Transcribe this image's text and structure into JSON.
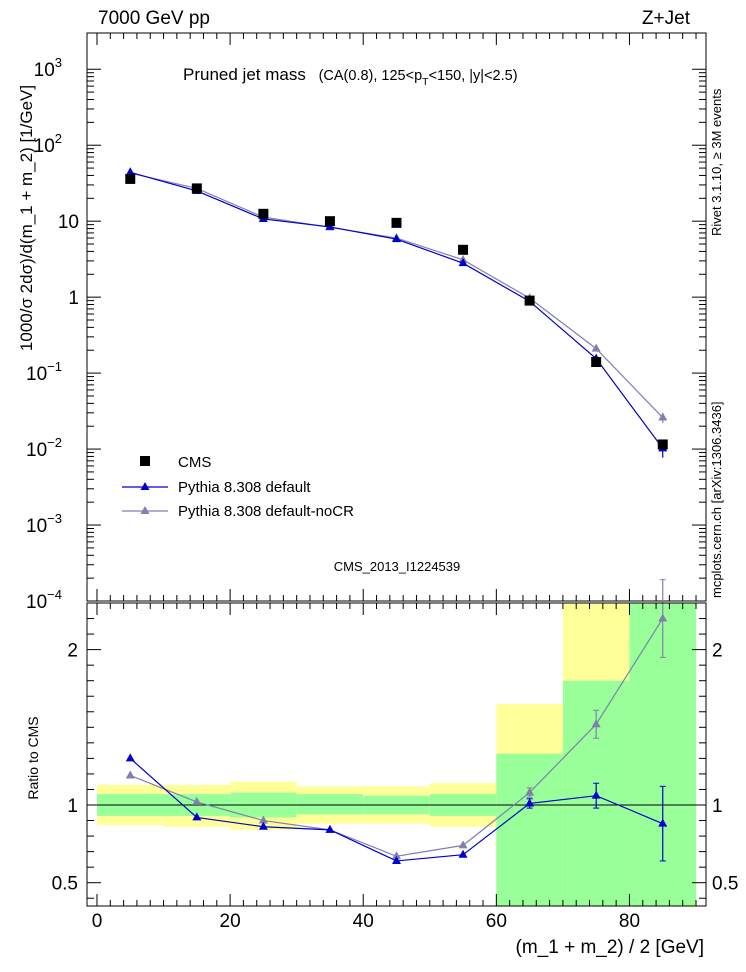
{
  "header": {
    "left": "7000 GeV pp",
    "right": "Z+Jet"
  },
  "side_labels": {
    "rivet": "Rivet 3.1.10, ≥ 3M events",
    "mcplots": "mcplots.cern.ch [arXiv:1306.3436]"
  },
  "chart_data": [
    {
      "type": "scatter",
      "title": "Pruned jet mass",
      "title_detail": "(CA(0.8), 125<p",
      "title_detail_sub": "T",
      "title_detail_tail": "<150, |y|<2.5)",
      "ylabel": "1000/σ 2dσ)/d(m_1 + m_2) [1/GeV]",
      "analysis_id": "CMS_2013_I1224539",
      "yscale": "log",
      "ylim": [
        0.0001,
        3000
      ],
      "xlim": [
        -1.5,
        91.5
      ],
      "y_ticks": [
        {
          "value": 1000,
          "base": "10",
          "exp": "3"
        },
        {
          "value": 100,
          "base": "10",
          "exp": "2"
        },
        {
          "value": 10,
          "base": "10",
          "exp": ""
        },
        {
          "value": 1,
          "base": "1",
          "exp": ""
        },
        {
          "value": 0.1,
          "base": "10",
          "exp": "−1"
        },
        {
          "value": 0.01,
          "base": "10",
          "exp": "−2"
        },
        {
          "value": 0.001,
          "base": "10",
          "exp": "−3"
        },
        {
          "value": 0.0001,
          "base": "10",
          "exp": "−4"
        }
      ],
      "x": [
        5,
        15,
        25,
        35,
        45,
        55,
        65,
        75,
        85
      ],
      "series": [
        {
          "name": "CMS",
          "color": "#000000",
          "marker": "square",
          "values": [
            36,
            27,
            12.5,
            10,
            9.5,
            4.2,
            0.9,
            0.14,
            0.0115
          ]
        },
        {
          "name": "Pythia 8.308 default",
          "color": "#0000cc",
          "marker": "triangle",
          "values": [
            44,
            25,
            10.7,
            8.4,
            5.8,
            2.8,
            0.88,
            0.155,
            0.0102
          ],
          "err_up": [
            0,
            0,
            0,
            0,
            0,
            0,
            0,
            0.01,
            0.0025
          ],
          "err_down": [
            0,
            0,
            0,
            0,
            0,
            0,
            0,
            0.01,
            0.0025
          ]
        },
        {
          "name": "Pythia 8.308 default-noCR",
          "color": "#8080b0",
          "marker": "triangle",
          "values": [
            43,
            27,
            11.3,
            8.3,
            6.0,
            3.1,
            0.97,
            0.21,
            0.026
          ],
          "err_up": [
            0,
            0,
            0,
            0,
            0,
            0,
            0,
            0.012,
            0.004
          ],
          "err_down": [
            0,
            0,
            0,
            0,
            0,
            0,
            0,
            0.012,
            0.004
          ]
        }
      ]
    },
    {
      "type": "scatter",
      "ylabel": "Ratio to CMS",
      "xlabel": "(m_1 + m_2) / 2 [GeV]",
      "ylim": [
        0.35,
        2.3
      ],
      "xlim": [
        -1.5,
        91.5
      ],
      "x_ticks": [
        0,
        20,
        40,
        60,
        80
      ],
      "y_ticks": [
        0.5,
        1,
        2
      ],
      "bands": [
        {
          "x0": 0,
          "x1": 10,
          "inner": [
            0.93,
            1.07
          ],
          "outer": [
            0.87,
            1.13
          ]
        },
        {
          "x0": 10,
          "x1": 20,
          "inner": [
            0.93,
            1.07
          ],
          "outer": [
            0.86,
            1.13
          ]
        },
        {
          "x0": 20,
          "x1": 30,
          "inner": [
            0.92,
            1.08
          ],
          "outer": [
            0.84,
            1.15
          ]
        },
        {
          "x0": 30,
          "x1": 40,
          "inner": [
            0.94,
            1.07
          ],
          "outer": [
            0.88,
            1.12
          ]
        },
        {
          "x0": 40,
          "x1": 50,
          "inner": [
            0.94,
            1.06
          ],
          "outer": [
            0.88,
            1.12
          ]
        },
        {
          "x0": 50,
          "x1": 60,
          "inner": [
            0.93,
            1.07
          ],
          "outer": [
            0.86,
            1.14
          ]
        },
        {
          "x0": 60,
          "x1": 70,
          "inner": [
            0.35,
            1.33
          ],
          "outer": [
            0.35,
            1.65
          ]
        },
        {
          "x0": 70,
          "x1": 80,
          "inner": [
            0.35,
            1.8
          ],
          "outer": [
            0.35,
            2.3
          ]
        },
        {
          "x0": 80,
          "x1": 90,
          "inner": [
            0.35,
            2.3
          ],
          "outer": [
            0.35,
            2.3
          ]
        }
      ],
      "x": [
        5,
        15,
        25,
        35,
        45,
        55,
        65,
        75,
        85
      ],
      "series": [
        {
          "name": "Pythia 8.308 default",
          "color": "#0000cc",
          "values": [
            1.3,
            0.92,
            0.86,
            0.84,
            0.64,
            0.68,
            1.01,
            1.06,
            0.88
          ],
          "err_up": [
            0,
            0,
            0,
            0,
            0,
            0,
            0.03,
            0.08,
            0.24
          ],
          "err_down": [
            0,
            0,
            0,
            0,
            0,
            0,
            0.03,
            0.08,
            0.24
          ]
        },
        {
          "name": "Pythia 8.308 default-noCR",
          "color": "#8080b0",
          "values": [
            1.19,
            1.02,
            0.9,
            0.84,
            0.67,
            0.74,
            1.08,
            1.52,
            2.2
          ],
          "err_up": [
            0,
            0,
            0,
            0,
            0,
            0,
            0.03,
            0.09,
            0.25
          ],
          "err_down": [
            0,
            0,
            0,
            0,
            0,
            0,
            0.03,
            0.09,
            0.25
          ]
        }
      ]
    }
  ],
  "colors": {
    "band_inner": "#99ff99",
    "band_outer": "#ffff99",
    "watermark": "#b0b0b0",
    "side_text": "#808080"
  }
}
